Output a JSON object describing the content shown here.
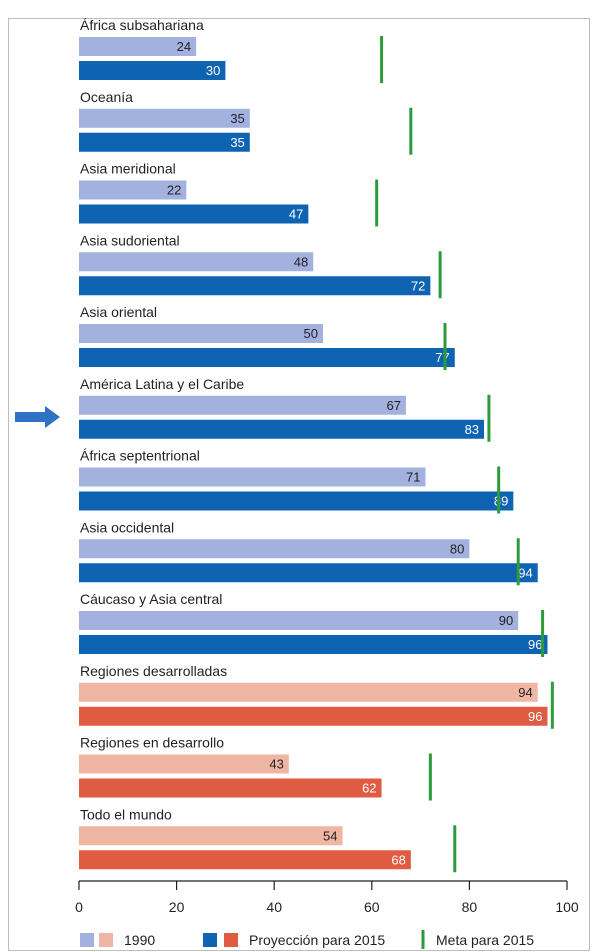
{
  "chart_data": {
    "type": "bar",
    "orientation": "horizontal",
    "categories": [
      "África subsahariana",
      "Oceanía",
      "Asia meridional",
      "Asia sudoriental",
      "Asia oriental",
      "América Latina y el Caribe",
      "África septentrional",
      "Asia occidental",
      "Cáucaso y Asia central",
      "Regiones desarrolladas",
      "Regiones en desarrollo",
      "Todo el mundo"
    ],
    "series": [
      {
        "name": "1990",
        "values": [
          24,
          35,
          22,
          48,
          50,
          67,
          71,
          80,
          90,
          94,
          43,
          54
        ]
      },
      {
        "name": "Proyección para 2015",
        "values": [
          30,
          35,
          47,
          72,
          77,
          83,
          89,
          94,
          96,
          96,
          62,
          68
        ]
      }
    ],
    "targets": {
      "name": "Meta para 2015",
      "values": [
        62,
        68,
        61,
        74,
        75,
        84,
        86,
        90,
        95,
        97,
        72,
        77
      ]
    },
    "xlim": [
      0,
      100
    ],
    "xticks": [
      "0",
      "20",
      "40",
      "60",
      "80",
      "100"
    ],
    "legend_position": "bottom",
    "grid": false
  },
  "colors": {
    "series_1990_regional": "#a3b1df",
    "series_2015_regional": "#0e63b3",
    "series_1990_aggregate": "#efb7a3",
    "series_2015_aggregate": "#df5b42",
    "target_line": "#2e9b3a",
    "axis": "#231f20",
    "arrow": "#2f72c4"
  },
  "aggregate_categories": [
    "Regiones desarrolladas",
    "Regiones en desarrollo",
    "Todo el mundo"
  ],
  "highlight": {
    "icon": "right-arrow-icon",
    "category": "América Latina y el Caribe"
  }
}
